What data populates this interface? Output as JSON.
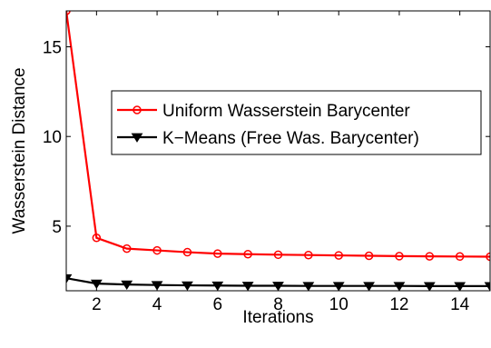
{
  "chart_data": {
    "type": "line",
    "title": "",
    "xlabel": "Iterations",
    "ylabel": "Wasserstein Distance",
    "xlim": [
      1,
      15
    ],
    "ylim": [
      1.4,
      17
    ],
    "xticks": [
      2,
      4,
      6,
      8,
      10,
      12,
      14
    ],
    "yticks": [
      5,
      10,
      15
    ],
    "grid": false,
    "legend_position": "center-right",
    "x": [
      1,
      2,
      3,
      4,
      5,
      6,
      7,
      8,
      9,
      10,
      11,
      12,
      13,
      14,
      15
    ],
    "series": [
      {
        "name": "Uniform Wasserstein Barycenter",
        "color": "#ff0000",
        "marker": "circle",
        "values": [
          17.0,
          4.35,
          3.75,
          3.65,
          3.55,
          3.47,
          3.44,
          3.41,
          3.39,
          3.37,
          3.35,
          3.33,
          3.32,
          3.31,
          3.3
        ]
      },
      {
        "name": "K−Means (Free Was. Barycenter)",
        "color": "#000000",
        "marker": "triangle-down",
        "values": [
          2.1,
          1.8,
          1.75,
          1.72,
          1.7,
          1.69,
          1.68,
          1.68,
          1.67,
          1.67,
          1.67,
          1.67,
          1.66,
          1.66,
          1.66
        ]
      }
    ]
  }
}
